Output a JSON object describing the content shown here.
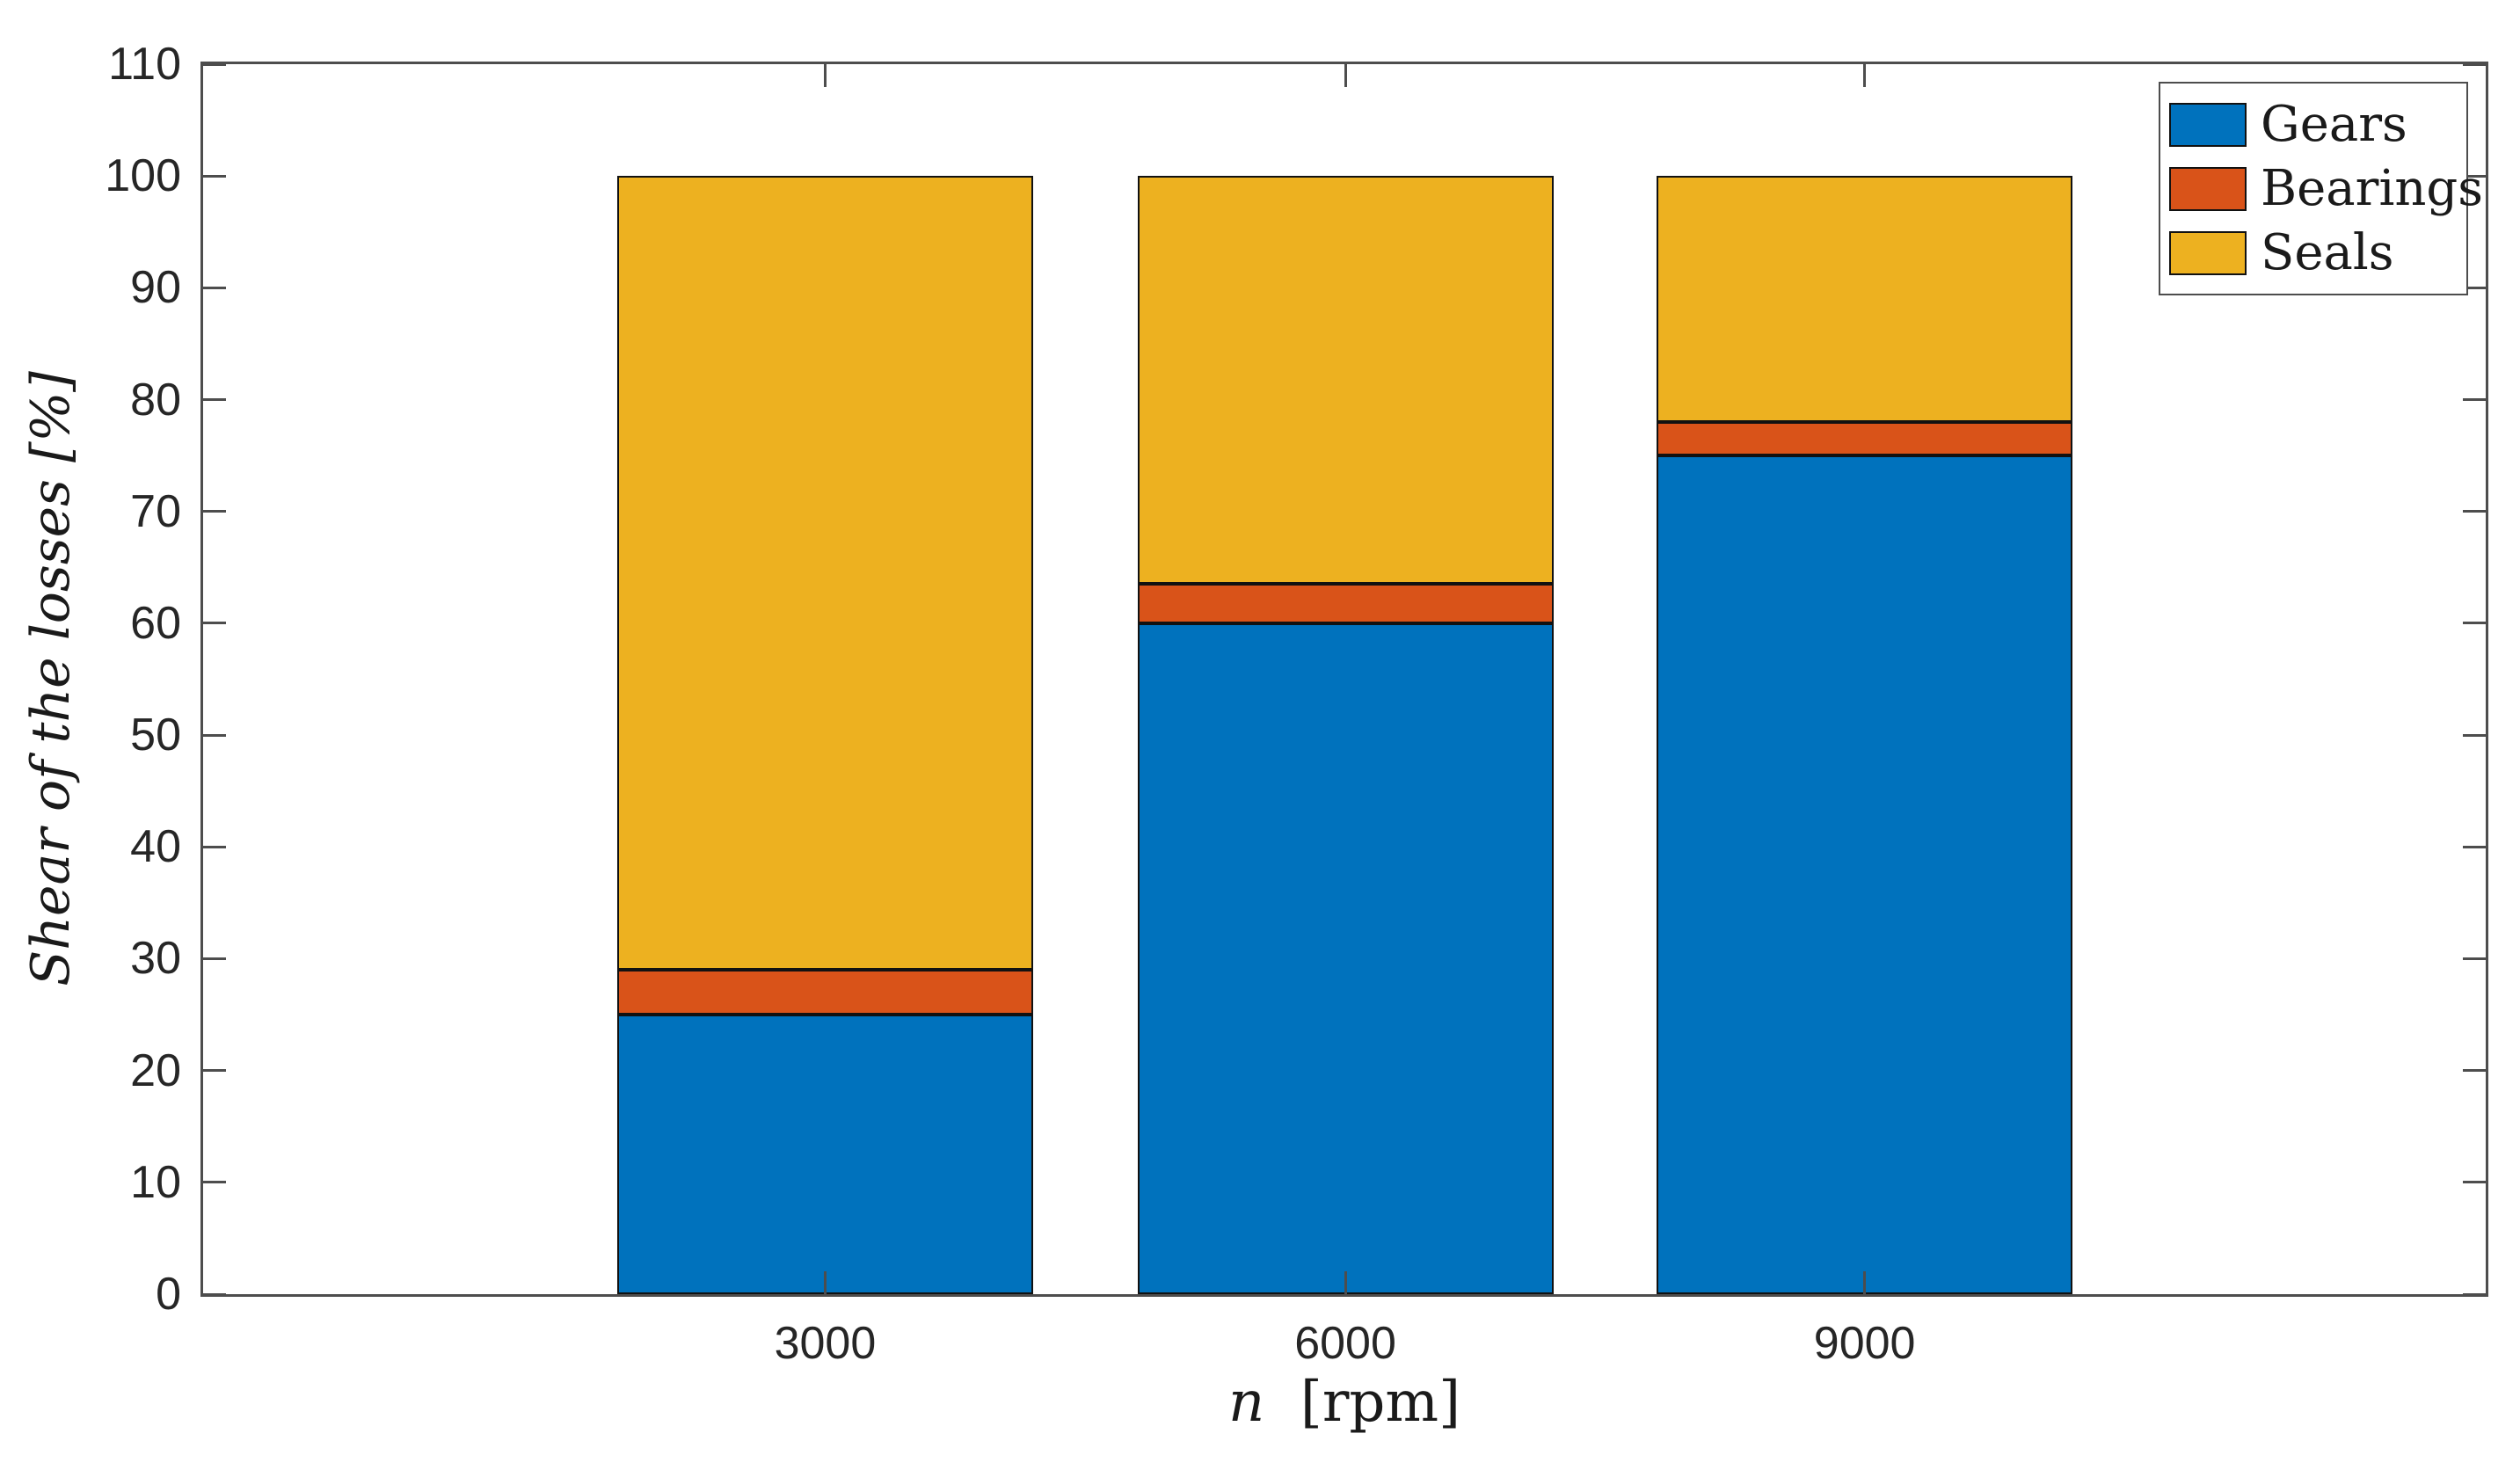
{
  "figure": {
    "ylabel": "Shear of the losses [%]",
    "xlabel_variable": "n",
    "xlabel_unit": "[rpm]"
  },
  "chart_data": {
    "type": "bar",
    "stacked": true,
    "title": "",
    "xlabel": "n [rpm]",
    "ylabel": "Shear of the losses [%]",
    "categories": [
      "3000",
      "6000",
      "9000"
    ],
    "series": [
      {
        "name": "Gears",
        "color": "#0072BD",
        "values": [
          25,
          60,
          75
        ]
      },
      {
        "name": "Bearings",
        "color": "#D95319",
        "values": [
          4,
          3.5,
          3
        ]
      },
      {
        "name": "Seals",
        "color": "#EDB120",
        "values": [
          71,
          36.5,
          22
        ]
      }
    ],
    "stack_totals": [
      100,
      100,
      100
    ],
    "ylim": [
      0,
      110
    ],
    "y_ticks": [
      0,
      10,
      20,
      30,
      40,
      50,
      60,
      70,
      80,
      90,
      100,
      110
    ],
    "grid": false,
    "legend_position": "northeast",
    "bar_edge_color": "#111111",
    "axis_color": "#4d4d4d",
    "tick_label_color": "#262626"
  }
}
